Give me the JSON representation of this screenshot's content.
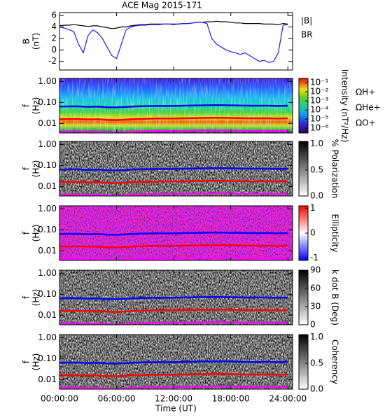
{
  "chart_data": [
    {
      "type": "line",
      "title": "ACE Mag 2015-171",
      "ylabel": [
        "B",
        "(nT)"
      ],
      "xlim": [
        0,
        24.5
      ],
      "xticks": [
        0,
        6,
        12,
        18,
        24
      ],
      "ylim": [
        -3.5,
        6.5
      ],
      "yticks": [
        -2,
        0,
        2,
        4,
        6
      ],
      "x": [
        0,
        0.5,
        1,
        1.5,
        2,
        2.5,
        3,
        3.5,
        4,
        4.5,
        5,
        5.5,
        6,
        6.5,
        7,
        7.5,
        8,
        8.5,
        9,
        9.5,
        10,
        10.5,
        11,
        11.5,
        12,
        12.5,
        13,
        13.5,
        14,
        14.5,
        15,
        15.5,
        16,
        16.5,
        17,
        17.5,
        18,
        18.5,
        19,
        19.5,
        20,
        20.5,
        21,
        21.5,
        22,
        22.5,
        23,
        23.5,
        24
      ],
      "series": [
        {
          "name": "|B|",
          "color": "#000000",
          "values": [
            4.2,
            4.3,
            4.3,
            4.4,
            4.3,
            4.2,
            4.1,
            4.2,
            4.2,
            4.0,
            3.9,
            3.7,
            3.8,
            4.0,
            4.0,
            4.2,
            4.3,
            4.4,
            4.4,
            4.5,
            4.5,
            4.5,
            4.5,
            4.5,
            4.5,
            4.5,
            4.6,
            4.6,
            4.7,
            4.8,
            4.8,
            4.9,
            4.9,
            5.0,
            4.9,
            4.9,
            4.8,
            4.7,
            4.7,
            4.6,
            4.6,
            4.6,
            4.6,
            4.5,
            4.5,
            4.5,
            4.4,
            4.6,
            4.5
          ]
        },
        {
          "name": "BR",
          "color": "#1a1aff",
          "values": [
            4.0,
            3.8,
            3.5,
            3.2,
            1.0,
            -0.5,
            2.5,
            3.5,
            3.0,
            2.0,
            0.5,
            -1.0,
            -1.5,
            1.0,
            3.5,
            4.0,
            4.2,
            4.3,
            4.3,
            4.4,
            4.4,
            4.4,
            4.5,
            4.5,
            4.4,
            4.5,
            4.6,
            4.6,
            4.7,
            4.8,
            4.8,
            4.6,
            2.0,
            1.0,
            0.5,
            0.0,
            -0.3,
            -0.5,
            -0.8,
            -0.5,
            -1.0,
            -1.5,
            -2.0,
            -1.8,
            -2.2,
            -2.0,
            -0.5,
            4.3,
            4.4
          ]
        }
      ]
    },
    {
      "type": "spectrogram",
      "background": "rainbow",
      "ylabel": [
        "f",
        "(Hz)"
      ],
      "ylog": true,
      "xlim": [
        0,
        24.5
      ],
      "xticks": [
        0,
        6,
        12,
        18,
        24
      ],
      "ylim": [
        0.0035,
        1.4
      ],
      "yticks": [
        {
          "value": 0.01,
          "label": "0.01"
        },
        {
          "value": 0.1,
          "label": "0.10"
        },
        {
          "value": 1,
          "label": "1.00"
        }
      ],
      "cbar": {
        "label": "Intensity (nT²/Hz)",
        "log": true,
        "lim": [
          3e-07,
          0.3
        ],
        "ticks": [
          {
            "value": 1e-06,
            "label": "10⁻⁶"
          },
          {
            "value": 1e-05,
            "label": "10⁻⁵"
          },
          {
            "value": 0.0001,
            "label": "10⁻⁴"
          },
          {
            "value": 0.001,
            "label": "10⁻³"
          },
          {
            "value": 0.01,
            "label": "10⁻²"
          },
          {
            "value": 0.1,
            "label": "10⁻¹"
          }
        ]
      },
      "legend": true,
      "x": [
        0,
        1,
        2,
        3,
        4,
        5,
        6,
        7,
        8,
        9,
        10,
        11,
        12,
        13,
        14,
        15,
        16,
        17,
        18,
        19,
        20,
        21,
        22,
        23,
        24
      ],
      "series": [
        {
          "name": "ΩH+",
          "color": "#0000ff",
          "values": [
            0.064,
            0.065,
            0.065,
            0.062,
            0.064,
            0.059,
            0.058,
            0.061,
            0.065,
            0.067,
            0.068,
            0.068,
            0.068,
            0.07,
            0.071,
            0.073,
            0.074,
            0.074,
            0.073,
            0.071,
            0.07,
            0.07,
            0.07,
            0.068,
            0.07
          ]
        },
        {
          "name": "ΩHe+",
          "color": "#ff0000",
          "values": [
            0.016,
            0.0163,
            0.0163,
            0.0156,
            0.016,
            0.0148,
            0.0144,
            0.0152,
            0.0163,
            0.0167,
            0.0171,
            0.0171,
            0.0171,
            0.0175,
            0.0179,
            0.0182,
            0.0186,
            0.0186,
            0.0182,
            0.0179,
            0.0175,
            0.0175,
            0.0175,
            0.0171,
            0.0175
          ]
        },
        {
          "name": "ΩO+",
          "color": "#ff00ff",
          "values": [
            0.004,
            0.0041,
            0.0041,
            0.0039,
            0.004,
            0.0037,
            0.0036,
            0.0038,
            0.0041,
            0.0042,
            0.0043,
            0.0043,
            0.0043,
            0.0044,
            0.0045,
            0.0046,
            0.0047,
            0.0047,
            0.0046,
            0.0045,
            0.0044,
            0.0044,
            0.0044,
            0.0043,
            0.0044
          ]
        }
      ]
    },
    {
      "type": "spectrogram",
      "background": "gray",
      "ylabel": [
        "f",
        "(Hz)"
      ],
      "ylog": true,
      "xlim": [
        0,
        24.5
      ],
      "xticks": [
        0,
        6,
        12,
        18,
        24
      ],
      "ylim": [
        0.0035,
        1.4
      ],
      "yticks": [
        {
          "value": 0.01,
          "label": "0.01"
        },
        {
          "value": 0.1,
          "label": "0.10"
        },
        {
          "value": 1,
          "label": "1.00"
        }
      ],
      "cbar": {
        "label": "% Polarization",
        "log": false,
        "lim": [
          0,
          1.05
        ],
        "ticks": [
          {
            "value": 0,
            "label": "0.0"
          },
          {
            "value": 0.5,
            "label": "0.5"
          },
          {
            "value": 1,
            "label": "1.0"
          }
        ]
      },
      "x": [
        0,
        1,
        2,
        3,
        4,
        5,
        6,
        7,
        8,
        9,
        10,
        11,
        12,
        13,
        14,
        15,
        16,
        17,
        18,
        19,
        20,
        21,
        22,
        23,
        24
      ],
      "series": [
        {
          "color": "#0000ff",
          "values": [
            0.064,
            0.065,
            0.065,
            0.062,
            0.064,
            0.059,
            0.058,
            0.061,
            0.065,
            0.067,
            0.068,
            0.068,
            0.068,
            0.07,
            0.071,
            0.073,
            0.074,
            0.074,
            0.073,
            0.071,
            0.07,
            0.07,
            0.07,
            0.068,
            0.07
          ]
        },
        {
          "color": "#ff0000",
          "values": [
            0.016,
            0.0163,
            0.0163,
            0.0156,
            0.016,
            0.0148,
            0.0144,
            0.0152,
            0.0163,
            0.0167,
            0.0171,
            0.0171,
            0.0171,
            0.0175,
            0.0179,
            0.0182,
            0.0186,
            0.0186,
            0.0182,
            0.0179,
            0.0175,
            0.0175,
            0.0175,
            0.0171,
            0.0175
          ]
        },
        {
          "color": "#ff00ff",
          "values": [
            0.004,
            0.0041,
            0.0041,
            0.0039,
            0.004,
            0.0037,
            0.0036,
            0.0038,
            0.0041,
            0.0042,
            0.0043,
            0.0043,
            0.0043,
            0.0044,
            0.0045,
            0.0046,
            0.0047,
            0.0047,
            0.0046,
            0.0045,
            0.0044,
            0.0044,
            0.0044,
            0.0043,
            0.0044
          ]
        }
      ]
    },
    {
      "type": "spectrogram",
      "background": "bwr",
      "ylabel": [
        "f",
        "(Hz)"
      ],
      "ylog": true,
      "xlim": [
        0,
        24.5
      ],
      "xticks": [
        0,
        6,
        12,
        18,
        24
      ],
      "ylim": [
        0.0035,
        1.4
      ],
      "yticks": [
        {
          "value": 0.01,
          "label": "0.01"
        },
        {
          "value": 0.1,
          "label": "0.10"
        },
        {
          "value": 1,
          "label": "1.00"
        }
      ],
      "cbar": {
        "label": "Ellipticity",
        "log": false,
        "lim": [
          -1.1,
          1.1
        ],
        "ticks": [
          -1,
          0,
          1
        ]
      },
      "x": [
        0,
        1,
        2,
        3,
        4,
        5,
        6,
        7,
        8,
        9,
        10,
        11,
        12,
        13,
        14,
        15,
        16,
        17,
        18,
        19,
        20,
        21,
        22,
        23,
        24
      ],
      "series": [
        {
          "color": "#0000ff",
          "values": [
            0.064,
            0.065,
            0.065,
            0.062,
            0.064,
            0.059,
            0.058,
            0.061,
            0.065,
            0.067,
            0.068,
            0.068,
            0.068,
            0.07,
            0.071,
            0.073,
            0.074,
            0.074,
            0.073,
            0.071,
            0.07,
            0.07,
            0.07,
            0.068,
            0.07
          ]
        },
        {
          "color": "#ff0000",
          "values": [
            0.016,
            0.0163,
            0.0163,
            0.0156,
            0.016,
            0.0148,
            0.0144,
            0.0152,
            0.0163,
            0.0167,
            0.0171,
            0.0171,
            0.0171,
            0.0175,
            0.0179,
            0.0182,
            0.0186,
            0.0186,
            0.0182,
            0.0179,
            0.0175,
            0.0175,
            0.0175,
            0.0171,
            0.0175
          ]
        },
        {
          "color": "#ff00ff",
          "values": [
            0.004,
            0.0041,
            0.0041,
            0.0039,
            0.004,
            0.0037,
            0.0036,
            0.0038,
            0.0041,
            0.0042,
            0.0043,
            0.0043,
            0.0043,
            0.0044,
            0.0045,
            0.0046,
            0.0047,
            0.0047,
            0.0046,
            0.0045,
            0.0044,
            0.0044,
            0.0044,
            0.0043,
            0.0044
          ]
        }
      ]
    },
    {
      "type": "spectrogram",
      "background": "gray",
      "ylabel": [
        "f",
        "(Hz)"
      ],
      "ylog": true,
      "xlim": [
        0,
        24.5
      ],
      "xticks": [
        0,
        6,
        12,
        18,
        24
      ],
      "ylim": [
        0.0035,
        1.4
      ],
      "yticks": [
        {
          "value": 0.01,
          "label": "0.01"
        },
        {
          "value": 0.1,
          "label": "0.10"
        },
        {
          "value": 1,
          "label": "1.00"
        }
      ],
      "cbar": {
        "label": "k dot B (Deg)",
        "log": false,
        "lim": [
          0,
          90
        ],
        "ticks": [
          0,
          30,
          60,
          90
        ]
      },
      "x": [
        0,
        1,
        2,
        3,
        4,
        5,
        6,
        7,
        8,
        9,
        10,
        11,
        12,
        13,
        14,
        15,
        16,
        17,
        18,
        19,
        20,
        21,
        22,
        23,
        24
      ],
      "series": [
        {
          "color": "#0000ff",
          "values": [
            0.064,
            0.065,
            0.065,
            0.062,
            0.064,
            0.059,
            0.058,
            0.061,
            0.065,
            0.067,
            0.068,
            0.068,
            0.068,
            0.07,
            0.071,
            0.073,
            0.074,
            0.074,
            0.073,
            0.071,
            0.07,
            0.07,
            0.07,
            0.068,
            0.07
          ]
        },
        {
          "color": "#ff0000",
          "values": [
            0.016,
            0.0163,
            0.0163,
            0.0156,
            0.016,
            0.0148,
            0.0144,
            0.0152,
            0.0163,
            0.0167,
            0.0171,
            0.0171,
            0.0171,
            0.0175,
            0.0179,
            0.0182,
            0.0186,
            0.0186,
            0.0182,
            0.0179,
            0.0175,
            0.0175,
            0.0175,
            0.0171,
            0.0175
          ]
        },
        {
          "color": "#ff00ff",
          "values": [
            0.004,
            0.0041,
            0.0041,
            0.0039,
            0.004,
            0.0037,
            0.0036,
            0.0038,
            0.0041,
            0.0042,
            0.0043,
            0.0043,
            0.0043,
            0.0044,
            0.0045,
            0.0046,
            0.0047,
            0.0047,
            0.0046,
            0.0045,
            0.0044,
            0.0044,
            0.0044,
            0.0043,
            0.0044
          ]
        }
      ]
    },
    {
      "type": "spectrogram",
      "background": "gray",
      "ylabel": [
        "f",
        "(Hz)"
      ],
      "ylog": true,
      "xlim": [
        0,
        24.5
      ],
      "xlabel": "Time (UT)",
      "xticks": [
        {
          "value": 0,
          "label": "00:00:00"
        },
        {
          "value": 6,
          "label": "06:00:00"
        },
        {
          "value": 12,
          "label": "12:00:00"
        },
        {
          "value": 18,
          "label": "18:00:00"
        },
        {
          "value": 24,
          "label": "24:00:00"
        }
      ],
      "ylim": [
        0.0035,
        1.4
      ],
      "yticks": [
        {
          "value": 0.01,
          "label": "0.01"
        },
        {
          "value": 0.1,
          "label": "0.10"
        },
        {
          "value": 1,
          "label": "1.00"
        }
      ],
      "cbar": {
        "label": "Coherency",
        "log": false,
        "lim": [
          0,
          1.05
        ],
        "ticks": [
          {
            "value": 0,
            "label": "0.0"
          },
          {
            "value": 0.5,
            "label": "0.5"
          },
          {
            "value": 1,
            "label": "1.0"
          }
        ]
      },
      "x": [
        0,
        1,
        2,
        3,
        4,
        5,
        6,
        7,
        8,
        9,
        10,
        11,
        12,
        13,
        14,
        15,
        16,
        17,
        18,
        19,
        20,
        21,
        22,
        23,
        24
      ],
      "series": [
        {
          "color": "#0000ff",
          "values": [
            0.064,
            0.065,
            0.065,
            0.062,
            0.064,
            0.059,
            0.058,
            0.061,
            0.065,
            0.067,
            0.068,
            0.068,
            0.068,
            0.07,
            0.071,
            0.073,
            0.074,
            0.074,
            0.073,
            0.071,
            0.07,
            0.07,
            0.07,
            0.068,
            0.07
          ]
        },
        {
          "color": "#ff0000",
          "values": [
            0.016,
            0.0163,
            0.0163,
            0.0156,
            0.016,
            0.0148,
            0.0144,
            0.0152,
            0.0163,
            0.0167,
            0.0171,
            0.0171,
            0.0171,
            0.0175,
            0.0179,
            0.0182,
            0.0186,
            0.0186,
            0.0182,
            0.0179,
            0.0175,
            0.0175,
            0.0175,
            0.0171,
            0.0175
          ]
        },
        {
          "color": "#ff00ff",
          "values": [
            0.004,
            0.0041,
            0.0041,
            0.0039,
            0.004,
            0.0037,
            0.0036,
            0.0038,
            0.0041,
            0.0042,
            0.0043,
            0.0043,
            0.0043,
            0.0044,
            0.0045,
            0.0046,
            0.0047,
            0.0047,
            0.0046,
            0.0045,
            0.0044,
            0.0044,
            0.0044,
            0.0043,
            0.0044
          ]
        }
      ]
    }
  ]
}
